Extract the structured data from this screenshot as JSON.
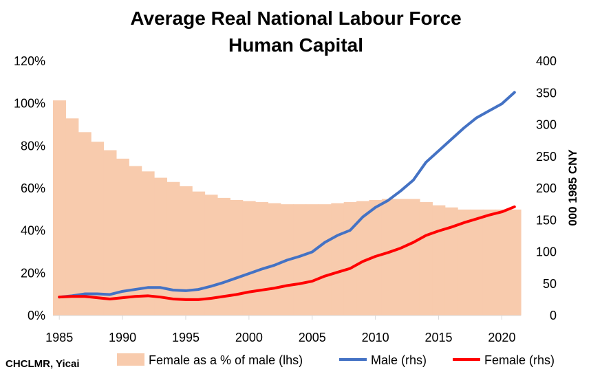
{
  "chart_data": {
    "type": "bar+line",
    "title": [
      "Average Real National Labour Force",
      "Human Capital"
    ],
    "x": [
      1985,
      1986,
      1987,
      1988,
      1989,
      1990,
      1991,
      1992,
      1993,
      1994,
      1995,
      1996,
      1997,
      1998,
      1999,
      2000,
      2001,
      2002,
      2003,
      2004,
      2005,
      2006,
      2007,
      2008,
      2009,
      2010,
      2011,
      2012,
      2013,
      2014,
      2015,
      2016,
      2017,
      2018,
      2019,
      2020,
      2021
    ],
    "x_ticks": [
      "1985",
      "1990",
      "1995",
      "2000",
      "2005",
      "2010",
      "2015",
      "2020"
    ],
    "y_left": {
      "ticks": [
        "0%",
        "20%",
        "40%",
        "60%",
        "80%",
        "100%",
        "120%"
      ],
      "lim": [
        0,
        120
      ]
    },
    "y_right": {
      "ticks": [
        "0",
        "50",
        "100",
        "150",
        "200",
        "250",
        "300",
        "350",
        "400"
      ],
      "lim": [
        0,
        400
      ],
      "label": "000 1985 CNY"
    },
    "series": [
      {
        "name": "Female as a % of male (lhs)",
        "kind": "bar",
        "axis": "left",
        "color": "#f8cbad",
        "values": [
          101.5,
          93,
          86.5,
          82,
          78,
          74,
          70.5,
          68,
          65,
          63,
          61,
          58.5,
          57,
          55.5,
          54.5,
          54,
          53.5,
          53,
          52.5,
          52.5,
          52.5,
          52.5,
          53,
          53.5,
          54,
          54.5,
          55,
          55,
          55,
          53.5,
          52,
          51,
          50,
          50,
          50,
          50,
          50
        ]
      },
      {
        "name": "Male (rhs)",
        "kind": "line",
        "axis": "right",
        "color": "#4472c4",
        "values": [
          29,
          31,
          34,
          34,
          33,
          38,
          41,
          44,
          44,
          40,
          39,
          41,
          46,
          52,
          59,
          66,
          73,
          79,
          87,
          93,
          100,
          115,
          126,
          134,
          155,
          170,
          181,
          196,
          213,
          241,
          259,
          277,
          295,
          311,
          322,
          333,
          351
        ]
      },
      {
        "name": "Female (rhs)",
        "kind": "line",
        "axis": "right",
        "color": "#ff0000",
        "values": [
          29,
          30,
          30,
          28,
          26,
          28,
          30,
          31,
          29,
          26,
          25,
          25,
          27,
          30,
          33,
          37,
          40,
          43,
          47,
          50,
          54,
          62,
          68,
          74,
          85,
          93,
          99,
          106,
          115,
          126,
          133,
          139,
          146,
          152,
          158,
          163,
          171
        ]
      }
    ],
    "source": "CHCLMR, Yicai"
  }
}
